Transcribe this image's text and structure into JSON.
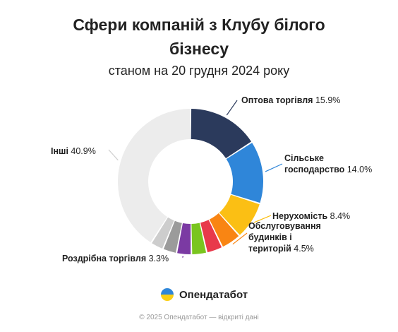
{
  "title_line1": "Сфери компаній з Клубу білого",
  "title_line2": "бізнесу",
  "subtitle": "станом на 20 грудня 2024 року",
  "brand": "Опендатабот",
  "footer": "© 2025 Опендатабот — відкриті дані",
  "labels": {
    "wholesale_name": "Оптова торгівля",
    "wholesale_value": "15.9%",
    "agro_name_line1": "Сільське",
    "agro_name_line2": "господарство",
    "agro_value": "14.0%",
    "realty_name": "Нерухомість",
    "realty_value": "8.4%",
    "service_name_line1": "Обслуговування",
    "service_name_line2": "будинків і",
    "service_name_line3": "територій",
    "service_value": "4.5%",
    "retail_name": "Роздрібна торгівля",
    "retail_value": "3.3%",
    "other_name": "Інші",
    "other_value": "40.9%"
  },
  "chart_data": {
    "type": "pie",
    "donut": true,
    "title": "Сфери компаній з Клубу білого бізнесу",
    "subtitle": "станом на 20 грудня 2024 року",
    "slices": [
      {
        "name": "Оптова торгівля",
        "value": 15.9,
        "color": "#2b3a5c"
      },
      {
        "name": "Сільське господарство",
        "value": 14.0,
        "color": "#2f86d9"
      },
      {
        "name": "Нерухомість",
        "value": 8.4,
        "color": "#fbbf14"
      },
      {
        "name": "Обслуговування будинків і територій",
        "value": 4.5,
        "color": "#f98513"
      },
      {
        "name": "",
        "value": 3.6,
        "color": "#e8394b"
      },
      {
        "name": "",
        "value": 3.4,
        "color": "#7ac51f"
      },
      {
        "name": "Роздрібна торгівля",
        "value": 3.3,
        "color": "#7b3aa3"
      },
      {
        "name": "",
        "value": 3.1,
        "color": "#9b9b9b"
      },
      {
        "name": "",
        "value": 2.9,
        "color": "#cdcdcd"
      },
      {
        "name": "Інші",
        "value": 40.9,
        "color": "#ececec"
      }
    ]
  }
}
